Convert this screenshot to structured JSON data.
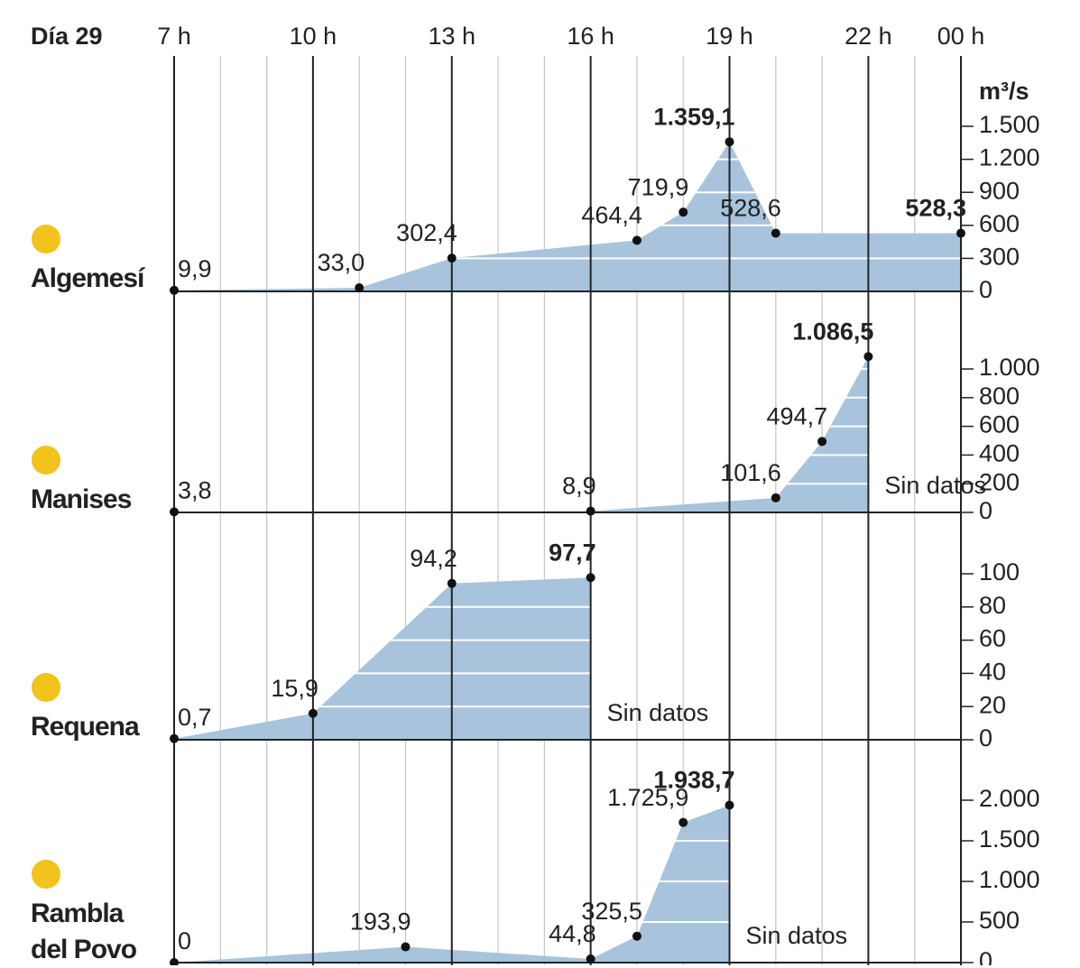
{
  "x_axis": {
    "label": "Día 29",
    "xlim": [
      7,
      24
    ],
    "xticks": [
      {
        "value": 7,
        "label": "7 h"
      },
      {
        "value": 10,
        "label": "10 h"
      },
      {
        "value": 13,
        "label": "13 h"
      },
      {
        "value": 16,
        "label": "16 h"
      },
      {
        "value": 19,
        "label": "19 h"
      },
      {
        "value": 22,
        "label": "22 h"
      },
      {
        "value": 24,
        "label": "00 h"
      }
    ]
  },
  "chart_data": [
    {
      "type": "area",
      "name": "Algemesí",
      "unit": "m³/s",
      "color": "#a7c4dc",
      "x": [
        7,
        11,
        13,
        17,
        18,
        19,
        20,
        24
      ],
      "values": [
        9.9,
        33.0,
        302.4,
        464.4,
        719.9,
        1359.1,
        528.6,
        528.3
      ],
      "value_labels": [
        "9,9",
        "33,0",
        "302,4",
        "464,4",
        "719,9",
        "1.359,1",
        "528,6",
        "528,3"
      ],
      "ylim": [
        0,
        1500
      ],
      "yticks": [
        0,
        300,
        600,
        900,
        {
          "value": 1200,
          "label": "1.200"
        },
        {
          "value": 1500,
          "label": "1.500"
        }
      ]
    },
    {
      "type": "area",
      "name": "Manises",
      "color": "#a7c4dc",
      "annotation": "Sin datos",
      "x": [
        7,
        16,
        20,
        21,
        22
      ],
      "values": [
        3.8,
        8.9,
        101.6,
        494.7,
        1086.5
      ],
      "value_labels": [
        "3,8",
        "8,9",
        "101,6",
        "494,7",
        "1.086,5"
      ],
      "ylim": [
        0,
        1000
      ],
      "yticks": [
        0,
        200,
        400,
        600,
        800,
        {
          "value": 1000,
          "label": "1.000"
        }
      ]
    },
    {
      "type": "area",
      "name": "Requena",
      "color": "#a7c4dc",
      "annotation": "Sin datos",
      "x": [
        7,
        10,
        13,
        16
      ],
      "values": [
        0.7,
        15.9,
        94.2,
        97.7
      ],
      "value_labels": [
        "0,7",
        "15,9",
        "94,2",
        "97,7"
      ],
      "ylim": [
        0,
        100
      ],
      "yticks": [
        0,
        20,
        40,
        60,
        80,
        100
      ]
    },
    {
      "type": "area",
      "name": "Rambla del Povo",
      "color": "#a7c4dc",
      "annotation": "Sin datos",
      "x": [
        7,
        12,
        16,
        17,
        18,
        19
      ],
      "values": [
        0,
        193.9,
        44.8,
        325.5,
        1725.9,
        1938.7
      ],
      "value_labels": [
        "0",
        "193,9",
        "44,8",
        "325,5",
        "1.725,9",
        "1.938,7"
      ],
      "ylim": [
        0,
        2000
      ],
      "yticks": [
        0,
        500,
        {
          "value": 1000,
          "label": "1.000"
        },
        {
          "value": 1500,
          "label": "1.500"
        },
        {
          "value": 2000,
          "label": "2.000"
        }
      ]
    }
  ]
}
